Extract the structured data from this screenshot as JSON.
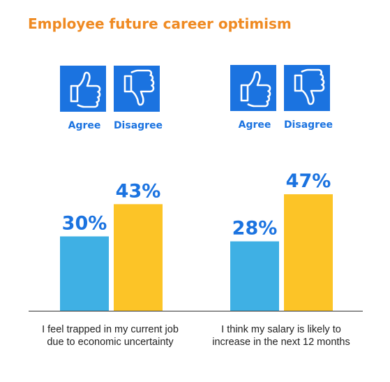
{
  "colors": {
    "title": "#ef8a22",
    "agree": "#3fb0e4",
    "disagree": "#fcc427",
    "icon_bg": "#1b73e0",
    "label_blue": "#1b73e0",
    "axis": "#333333"
  },
  "icons": {
    "agree": "thumbs-up-icon",
    "disagree": "thumbs-down-icon"
  },
  "chart_data": {
    "type": "bar",
    "title": "Employee future career optimism",
    "categories": [
      "I feel trapped in my current job due to economic uncertainty",
      "I think my salary is likely to increase in the next 12 months"
    ],
    "series": [
      {
        "name": "Agree",
        "values": [
          30,
          28
        ],
        "labels": [
          "30%",
          "28%"
        ]
      },
      {
        "name": "Disagree",
        "values": [
          43,
          47
        ],
        "labels": [
          "43%",
          "47%"
        ]
      }
    ],
    "unit": "%",
    "ylim": [
      0,
      100
    ],
    "grid": false,
    "legend_placement": "top, above each group"
  }
}
